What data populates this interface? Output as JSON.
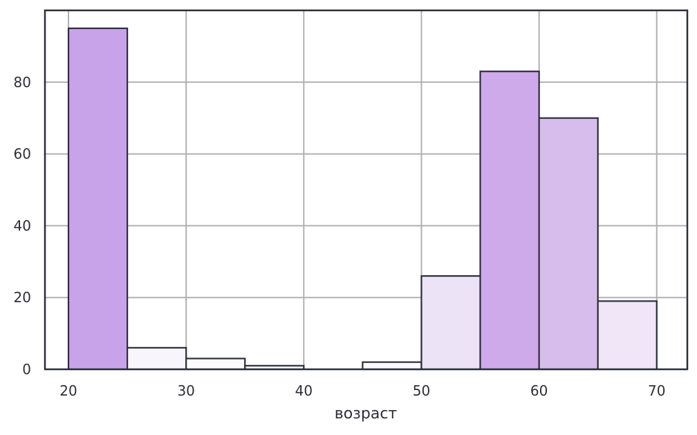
{
  "chart_data": {
    "type": "bar",
    "title": "",
    "xlabel": "возраст",
    "ylabel": "",
    "xlim": [
      18,
      72.6
    ],
    "ylim": [
      0,
      100
    ],
    "grid": true,
    "x_ticks": [
      "20",
      "30",
      "40",
      "50",
      "60",
      "70"
    ],
    "y_ticks": [
      "0",
      "20",
      "40",
      "60",
      "80"
    ],
    "bins": [
      {
        "start": 20,
        "end": 25,
        "value": 95,
        "color": "#c9a3ea"
      },
      {
        "start": 25,
        "end": 30,
        "value": 6,
        "color": "#f9f5fd"
      },
      {
        "start": 30,
        "end": 35,
        "value": 3,
        "color": "#fdfbfe"
      },
      {
        "start": 35,
        "end": 40,
        "value": 1,
        "color": "#fefeff"
      },
      {
        "start": 40,
        "end": 45,
        "value": 0,
        "color": "#ffffff"
      },
      {
        "start": 45,
        "end": 50,
        "value": 2,
        "color": "#fdfbfe"
      },
      {
        "start": 50,
        "end": 55,
        "value": 26,
        "color": "#ede3f6"
      },
      {
        "start": 55,
        "end": 60,
        "value": 83,
        "color": "#cfaaeb"
      },
      {
        "start": 60,
        "end": 65,
        "value": 70,
        "color": "#d7bdec"
      },
      {
        "start": 65,
        "end": 70,
        "value": 19,
        "color": "#f0e6f8"
      }
    ]
  }
}
